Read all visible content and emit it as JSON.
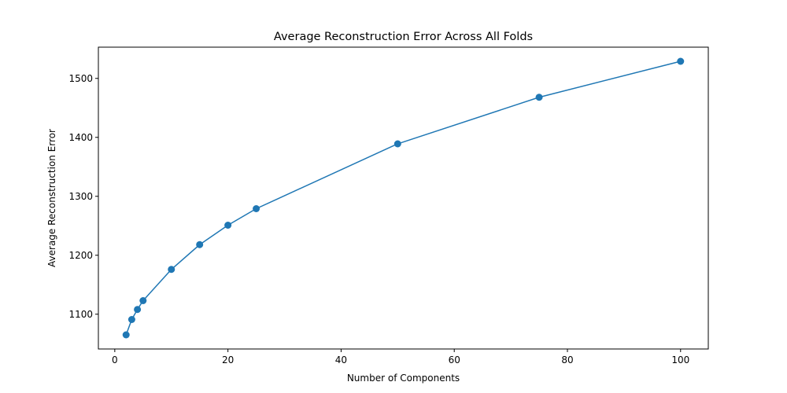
{
  "chart_data": {
    "type": "line",
    "title": "Average Reconstruction Error Across All Folds",
    "xlabel": "Number of Components",
    "ylabel": "Average Reconstruction Error",
    "x": [
      2,
      3,
      4,
      5,
      10,
      15,
      20,
      25,
      50,
      75,
      100
    ],
    "series": [
      {
        "values": [
          1065,
          1091,
          1108,
          1123,
          1176,
          1218,
          1251,
          1279,
          1389,
          1468,
          1529
        ],
        "color": "#1f77b4",
        "marker": "circle"
      }
    ],
    "xlim": [
      -2.9,
      104.9
    ],
    "ylim": [
      1041,
      1553
    ],
    "xticks": [
      0,
      20,
      40,
      60,
      80,
      100
    ],
    "yticks": [
      1100,
      1200,
      1300,
      1400,
      1500
    ],
    "grid": false,
    "legend": "none"
  }
}
